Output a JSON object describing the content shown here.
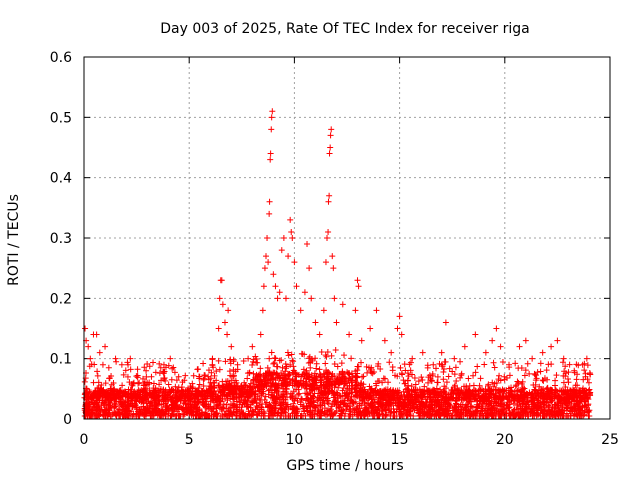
{
  "chart_data": {
    "type": "scatter",
    "title": "Day 003 of 2025, Rate Of TEC Index for receiver riga",
    "xlabel": "GPS time / hours",
    "ylabel": "ROTI / TECUs",
    "xlim": [
      0,
      25
    ],
    "ylim": [
      0,
      0.6
    ],
    "xticks": [
      0,
      5,
      10,
      15,
      20,
      25
    ],
    "yticks": [
      0,
      0.1,
      0.2,
      0.3,
      0.4,
      0.5,
      0.6
    ],
    "grid": true,
    "marker": "+",
    "color": "#ff0000",
    "series": [
      {
        "points": [
          [
            0.05,
            0.15
          ],
          [
            0.1,
            0.13
          ],
          [
            0.2,
            0.12
          ],
          [
            0.3,
            0.1
          ],
          [
            0.45,
            0.14
          ],
          [
            0.6,
            0.14
          ],
          [
            0.75,
            0.11
          ],
          [
            0.9,
            0.09
          ],
          [
            1.0,
            0.12
          ],
          [
            1.5,
            0.1
          ],
          [
            1.8,
            0.09
          ],
          [
            2.2,
            0.1
          ],
          [
            3.0,
            0.06
          ],
          [
            3.8,
            0.09
          ],
          [
            4.1,
            0.1
          ],
          [
            4.5,
            0.07
          ],
          [
            5.5,
            0.07
          ],
          [
            6.1,
            0.09
          ],
          [
            6.4,
            0.15
          ],
          [
            6.45,
            0.2
          ],
          [
            6.5,
            0.23
          ],
          [
            6.55,
            0.23
          ],
          [
            6.6,
            0.19
          ],
          [
            6.7,
            0.16
          ],
          [
            6.8,
            0.14
          ],
          [
            6.85,
            0.18
          ],
          [
            7.0,
            0.12
          ],
          [
            7.3,
            0.09
          ],
          [
            7.8,
            0.1
          ],
          [
            8.0,
            0.12
          ],
          [
            8.4,
            0.14
          ],
          [
            8.5,
            0.18
          ],
          [
            8.55,
            0.22
          ],
          [
            8.6,
            0.25
          ],
          [
            8.65,
            0.27
          ],
          [
            8.7,
            0.3
          ],
          [
            8.75,
            0.26
          ],
          [
            8.8,
            0.34
          ],
          [
            8.82,
            0.36
          ],
          [
            8.85,
            0.43
          ],
          [
            8.87,
            0.44
          ],
          [
            8.9,
            0.48
          ],
          [
            8.92,
            0.5
          ],
          [
            8.95,
            0.51
          ],
          [
            9.0,
            0.24
          ],
          [
            9.1,
            0.22
          ],
          [
            9.2,
            0.2
          ],
          [
            9.3,
            0.21
          ],
          [
            9.4,
            0.28
          ],
          [
            9.5,
            0.3
          ],
          [
            9.6,
            0.2
          ],
          [
            9.7,
            0.27
          ],
          [
            9.8,
            0.33
          ],
          [
            9.85,
            0.31
          ],
          [
            9.9,
            0.3
          ],
          [
            10.0,
            0.26
          ],
          [
            10.1,
            0.22
          ],
          [
            10.3,
            0.18
          ],
          [
            10.5,
            0.21
          ],
          [
            10.6,
            0.29
          ],
          [
            10.7,
            0.25
          ],
          [
            10.8,
            0.2
          ],
          [
            11.0,
            0.16
          ],
          [
            11.2,
            0.14
          ],
          [
            11.4,
            0.18
          ],
          [
            11.5,
            0.26
          ],
          [
            11.55,
            0.3
          ],
          [
            11.6,
            0.31
          ],
          [
            11.62,
            0.36
          ],
          [
            11.65,
            0.37
          ],
          [
            11.67,
            0.44
          ],
          [
            11.7,
            0.45
          ],
          [
            11.72,
            0.47
          ],
          [
            11.75,
            0.48
          ],
          [
            11.8,
            0.27
          ],
          [
            11.85,
            0.25
          ],
          [
            11.9,
            0.2
          ],
          [
            12.0,
            0.16
          ],
          [
            12.3,
            0.19
          ],
          [
            12.6,
            0.14
          ],
          [
            12.9,
            0.18
          ],
          [
            13.0,
            0.23
          ],
          [
            13.05,
            0.22
          ],
          [
            13.2,
            0.13
          ],
          [
            13.6,
            0.15
          ],
          [
            13.9,
            0.18
          ],
          [
            14.3,
            0.13
          ],
          [
            14.6,
            0.11
          ],
          [
            14.9,
            0.15
          ],
          [
            15.0,
            0.17
          ],
          [
            15.1,
            0.14
          ],
          [
            15.6,
            0.1
          ],
          [
            16.1,
            0.11
          ],
          [
            16.6,
            0.09
          ],
          [
            17.0,
            0.11
          ],
          [
            17.2,
            0.16
          ],
          [
            17.6,
            0.1
          ],
          [
            18.1,
            0.12
          ],
          [
            18.6,
            0.14
          ],
          [
            19.1,
            0.11
          ],
          [
            19.4,
            0.13
          ],
          [
            19.6,
            0.15
          ],
          [
            19.8,
            0.12
          ],
          [
            20.2,
            0.09
          ],
          [
            20.7,
            0.12
          ],
          [
            21.0,
            0.13
          ],
          [
            21.3,
            0.1
          ],
          [
            21.8,
            0.11
          ],
          [
            22.2,
            0.12
          ],
          [
            22.5,
            0.13
          ],
          [
            22.8,
            0.1
          ],
          [
            23.3,
            0.08
          ],
          [
            23.7,
            0.09
          ],
          [
            23.9,
            0.1
          ],
          [
            24.0,
            0.06
          ]
        ]
      }
    ]
  }
}
